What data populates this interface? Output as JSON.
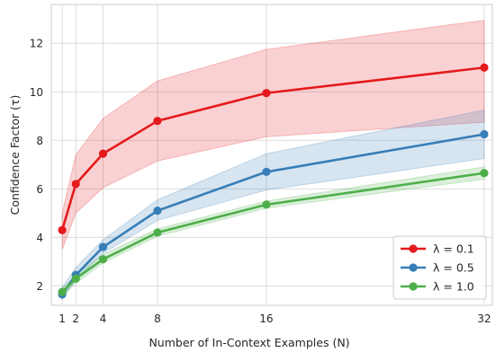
{
  "chart_data": {
    "type": "line",
    "xlabel": "Number of In-Context Examples (N)",
    "ylabel": "Confidence Factor (τ)",
    "x": [
      1,
      2,
      4,
      8,
      16,
      32
    ],
    "xticks": [
      "1",
      "2",
      "4",
      "8",
      "16",
      "32"
    ],
    "yticks": [
      "2",
      "4",
      "6",
      "8",
      "10",
      "12"
    ],
    "xlim": [
      0.2,
      32.6
    ],
    "ylim": [
      1.2,
      13.6
    ],
    "grid": true,
    "legend_position": "bottom-right",
    "series": [
      {
        "name": "λ = 0.1",
        "color": "#e41a1c",
        "values": [
          4.3,
          6.2,
          7.45,
          8.8,
          9.95,
          11.0
        ],
        "band_low": [
          3.5,
          5.0,
          6.05,
          7.15,
          8.15,
          8.75
        ],
        "band_high": [
          5.0,
          7.4,
          8.9,
          10.45,
          11.75,
          12.95
        ]
      },
      {
        "name": "λ = 0.5",
        "color": "#377eb8",
        "values": [
          1.65,
          2.45,
          3.6,
          5.1,
          6.7,
          8.25
        ],
        "band_low": [
          1.45,
          2.25,
          3.35,
          4.7,
          5.95,
          7.25
        ],
        "band_high": [
          1.95,
          2.75,
          3.9,
          5.55,
          7.45,
          9.25
        ]
      },
      {
        "name": "λ = 1.0",
        "color": "#4daf4a",
        "values": [
          1.75,
          2.3,
          3.1,
          4.2,
          5.35,
          6.65
        ],
        "band_low": [
          1.6,
          2.1,
          2.95,
          4.05,
          5.2,
          6.4
        ],
        "band_high": [
          1.9,
          2.45,
          3.3,
          4.35,
          5.5,
          6.9
        ]
      }
    ]
  }
}
